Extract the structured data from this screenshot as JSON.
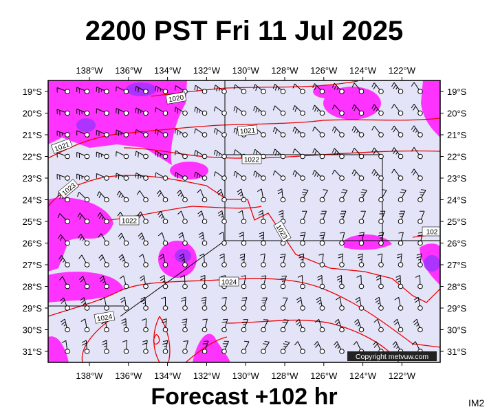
{
  "title": "2200 PST Fri 11 Jul 2025",
  "footer": "Forecast +102 hr",
  "corner": "IM2",
  "copyright": "Copyright metvuw.com",
  "lon_labels": [
    "138°W",
    "136°W",
    "134°W",
    "132°W",
    "130°W",
    "128°W",
    "126°W",
    "124°W",
    "122°W"
  ],
  "lat_labels": [
    "19°S",
    "20°S",
    "21°S",
    "22°S",
    "23°S",
    "24°S",
    "25°S",
    "26°S",
    "27°S",
    "28°S",
    "29°S",
    "30°S",
    "31°S"
  ],
  "isobar_labels": [
    "1020",
    "1021",
    "1021",
    "1022",
    "1022",
    "1023",
    "1023",
    "1024",
    "1024",
    "102"
  ]
}
